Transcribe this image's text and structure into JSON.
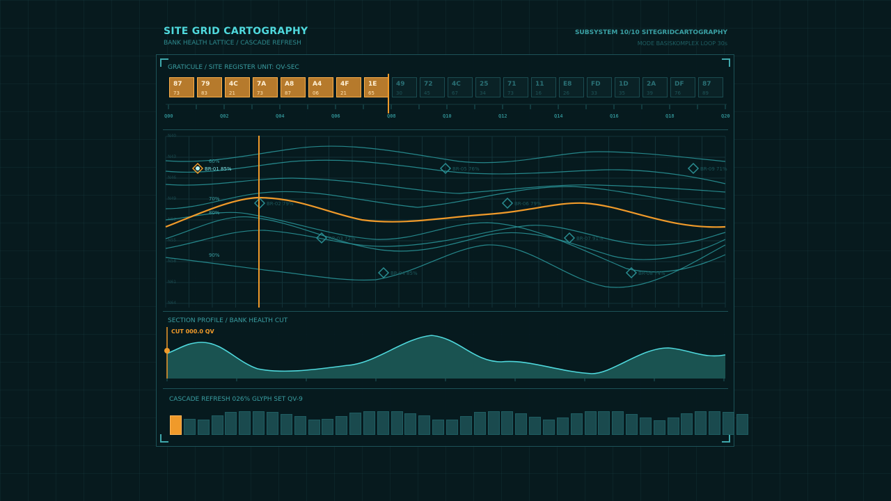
{
  "header": {
    "title": "SITE GRID CARTOGRAPHY",
    "subtitle": "BANK HEALTH LATTICE / CASCADE REFRESH",
    "subsystem": "SUBSYSTEM 10/10  SITEGRIDCARTOGRAPHY",
    "mode": "MODE BASISKOMPLEX  LOOP 30s"
  },
  "graticule": {
    "label": "GRATICULE / SITE REGISTER  UNIT: QV-SEC",
    "tiles": [
      {
        "code": "87",
        "value": "73",
        "active": true
      },
      {
        "code": "79",
        "value": "83",
        "active": true
      },
      {
        "code": "4C",
        "value": "21",
        "active": true
      },
      {
        "code": "7A",
        "value": "73",
        "active": true
      },
      {
        "code": "A8",
        "value": "87",
        "active": true
      },
      {
        "code": "A4",
        "value": "06",
        "active": true
      },
      {
        "code": "4F",
        "value": "21",
        "active": true
      },
      {
        "code": "1E",
        "value": "65",
        "active": true
      },
      {
        "code": "49",
        "value": "30",
        "active": false
      },
      {
        "code": "72",
        "value": "45",
        "active": false
      },
      {
        "code": "4C",
        "value": "67",
        "active": false
      },
      {
        "code": "25",
        "value": "34",
        "active": false
      },
      {
        "code": "71",
        "value": "73",
        "active": false
      },
      {
        "code": "11",
        "value": "16",
        "active": false
      },
      {
        "code": "E8",
        "value": "26",
        "active": false
      },
      {
        "code": "FD",
        "value": "33",
        "active": false
      },
      {
        "code": "1D",
        "value": "35",
        "active": false
      },
      {
        "code": "2A",
        "value": "39",
        "active": false
      },
      {
        "code": "DF",
        "value": "76",
        "active": false
      },
      {
        "code": "87",
        "value": "89",
        "active": false
      }
    ],
    "quarters": [
      "Q00",
      "Q02",
      "Q04",
      "Q06",
      "Q08",
      "Q10",
      "Q12",
      "Q14",
      "Q16",
      "Q18",
      "Q20"
    ]
  },
  "lattice": {
    "row_labels": [
      "N40",
      "N43",
      "N46",
      "N49",
      "N52",
      "N55",
      "N58",
      "N61",
      "N64"
    ],
    "contour_labels": [
      "60%",
      "70%",
      "80%",
      "90%"
    ],
    "markers": [
      {
        "label": "BR-01 85%",
        "selected": true
      },
      {
        "label": "BR-02 79%",
        "selected": false
      },
      {
        "label": "BR-03 72%",
        "selected": false
      },
      {
        "label": "BR-04 85%",
        "selected": false
      },
      {
        "label": "BR-05 76%",
        "selected": false
      },
      {
        "label": "BR-06 79%",
        "selected": false
      },
      {
        "label": "BR-07 91%",
        "selected": false
      },
      {
        "label": "BR-08 74%",
        "selected": false
      },
      {
        "label": "BR-09 71%",
        "selected": false
      }
    ]
  },
  "section": {
    "label": "SECTION PROFILE / BANK HEALTH CUT",
    "cut_label": "CUT 000.0 QV"
  },
  "cascade": {
    "label": "CASCADE REFRESH 026%  GLYPH SET QV-9",
    "bars": [
      0.95,
      0.78,
      0.75,
      0.92,
      1.1,
      1.15,
      1.15,
      1.1,
      1.0,
      0.9,
      0.75,
      0.78,
      0.9,
      1.08,
      1.15,
      1.13,
      1.12,
      1.05,
      0.93,
      0.72,
      0.75,
      0.9,
      1.1,
      1.15,
      1.15,
      1.05,
      0.88,
      0.72,
      0.82,
      1.02,
      1.13,
      1.15,
      1.13,
      1.0,
      0.83,
      0.7,
      0.85,
      1.05,
      1.13,
      1.15,
      1.1,
      1.0
    ],
    "active_count": 1
  },
  "colors": {
    "accent": "#f09a2a",
    "primary": "#4fd8dc",
    "line": "#3fa9ad"
  }
}
